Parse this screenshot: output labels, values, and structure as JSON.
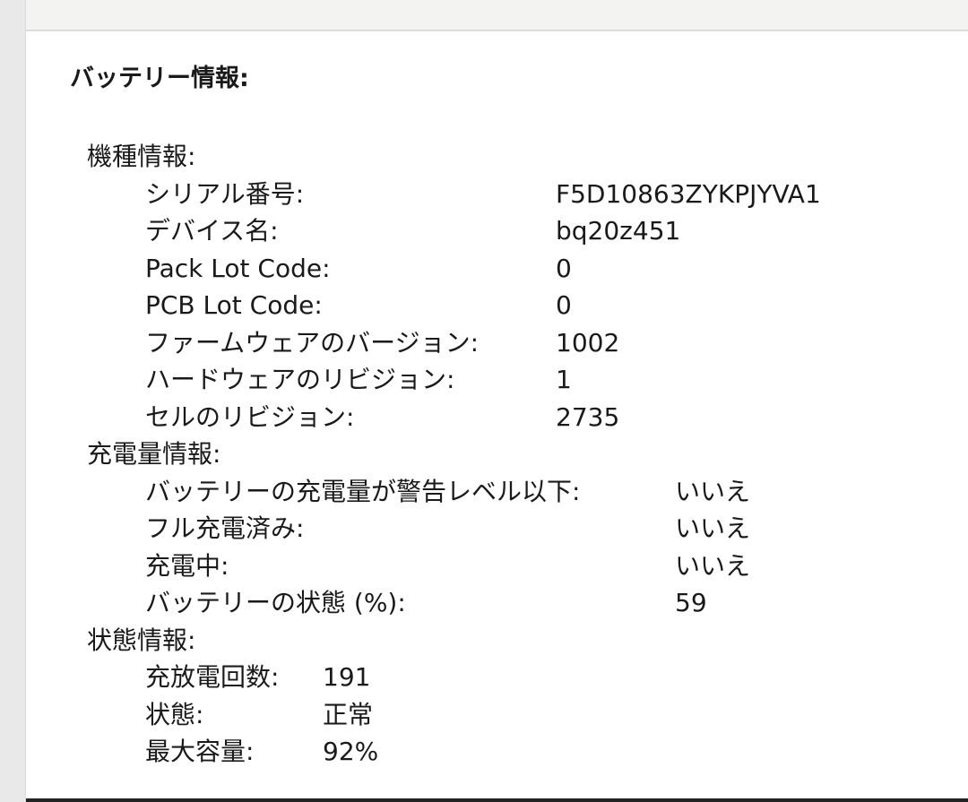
{
  "title": "バッテリー情報:",
  "sections": [
    {
      "label": "機種情報:",
      "items": [
        {
          "label": "シリアル番号:",
          "value": "F5D10863ZYKPJYVA1"
        },
        {
          "label": "デバイス名:",
          "value": "bq20z451"
        },
        {
          "label": "Pack Lot Code:",
          "value": "0"
        },
        {
          "label": "PCB Lot Code:",
          "value": "0"
        },
        {
          "label": "ファームウェアのバージョン:",
          "value": "1002"
        },
        {
          "label": "ハードウェアのリビジョン:",
          "value": "1"
        },
        {
          "label": "セルのリビジョン:",
          "value": "2735"
        }
      ]
    },
    {
      "label": "充電量情報:",
      "items": [
        {
          "label": "バッテリーの充電量が警告レベル以下:",
          "value": "いいえ"
        },
        {
          "label": "フル充電済み:",
          "value": "いいえ"
        },
        {
          "label": "充電中:",
          "value": "いいえ"
        },
        {
          "label": "バッテリーの状態 (%):",
          "value": "59"
        }
      ]
    },
    {
      "label": "状態情報:",
      "items": [
        {
          "label": "充放電回数:",
          "value": "191"
        },
        {
          "label": "状態:",
          "value": "正常"
        },
        {
          "label": "最大容量:",
          "value": "92%"
        }
      ]
    }
  ]
}
